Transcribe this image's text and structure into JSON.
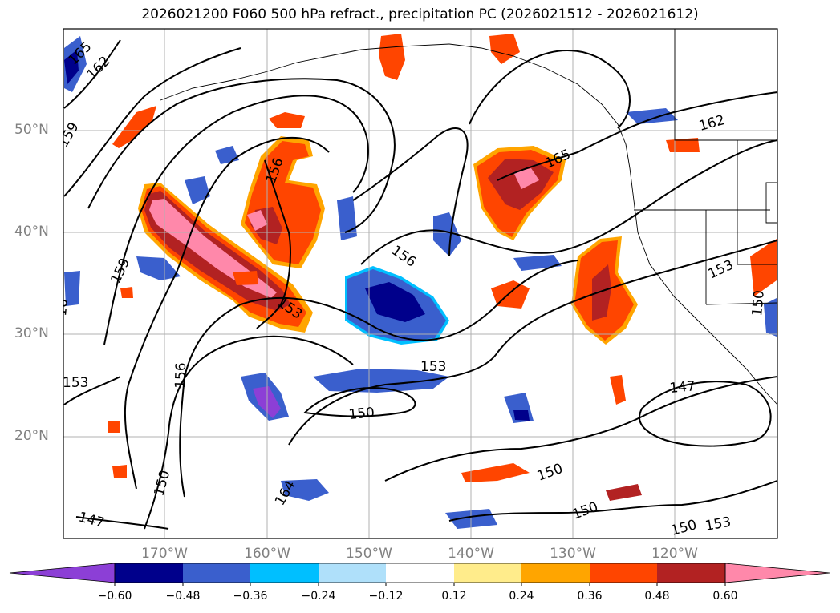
{
  "title": "2026021200 F060 500 hPa refract., precipitation PC (2026021512 - 2026021612)",
  "lat_labels": [
    "50°N",
    "40°N",
    "30°N",
    "20°N"
  ],
  "lon_labels": [
    "170°W",
    "160°W",
    "150°W",
    "140°W",
    "130°W",
    "120°W"
  ],
  "contour_labels": [
    "165",
    "162",
    "159",
    "156",
    "153",
    "150",
    "147",
    "162",
    "165",
    "156",
    "153",
    "159",
    "156",
    "153",
    "150",
    "147",
    "150",
    "150",
    "150",
    "153",
    "153",
    "150",
    "164",
    "16"
  ],
  "colorbar": {
    "ticks": [
      "−0.60",
      "−0.48",
      "−0.36",
      "−0.24",
      "−0.12",
      "0.12",
      "0.24",
      "0.36",
      "0.48",
      "0.60"
    ],
    "colors": [
      "#8c3fd6",
      "#00008b",
      "#3a5fcd",
      "#00bfff",
      "#afe0fa",
      "#ffffff",
      "#ffec8b",
      "#ffa500",
      "#ff4500",
      "#b22222",
      "#ff88aa"
    ]
  },
  "palette": {
    "pink": "#ff88aa",
    "darkred": "#b22222",
    "orangered": "#ff4500",
    "orange": "#ffa500",
    "yellow": "#ffec8b",
    "lightblue": "#afe0fa",
    "skyblue": "#00bfff",
    "blue": "#3a5fcd",
    "navy": "#00008b",
    "purple": "#8c3fd6"
  }
}
